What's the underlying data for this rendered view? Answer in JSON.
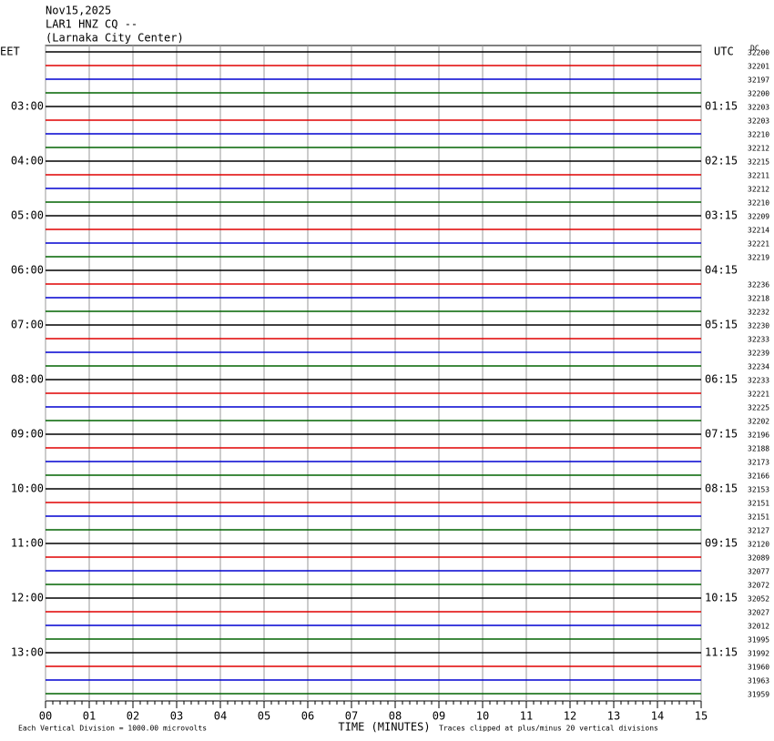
{
  "header": {
    "date": "Nov15,2025",
    "station": "LAR1 HNZ CQ --",
    "location": "(Larnaka City Center)"
  },
  "left_zone": "EET",
  "right_zone": "UTC",
  "corner": "DC",
  "left_labels": [
    "03:00",
    "04:00",
    "05:00",
    "06:00",
    "07:00",
    "08:00",
    "09:00",
    "10:00",
    "11:00",
    "12:00",
    "13:00"
  ],
  "right_labels": [
    "01:15",
    "02:15",
    "03:15",
    "04:15",
    "05:15",
    "06:15",
    "07:15",
    "08:15",
    "09:15",
    "10:15",
    "11:15"
  ],
  "counts": [
    32200,
    32201,
    32197,
    32200,
    32203,
    32203,
    32210,
    32212,
    32215,
    32211,
    32212,
    32210,
    32209,
    32214,
    32221,
    32219,
    null,
    32236,
    32218,
    32232,
    32230,
    32233,
    32239,
    32234,
    32233,
    32221,
    32225,
    32202,
    32196,
    32188,
    32173,
    32166,
    32153,
    32151,
    32151,
    32127,
    32120,
    32089,
    32077,
    32072,
    32052,
    32027,
    32012,
    31995,
    31992,
    31960,
    31963,
    31959
  ],
  "trace_colors": [
    "#000000",
    "#e00000",
    "#0000d0",
    "#006400"
  ],
  "x_ticks": [
    "00",
    "01",
    "02",
    "03",
    "04",
    "05",
    "06",
    "07",
    "08",
    "09",
    "10",
    "11",
    "12",
    "13",
    "14",
    "15"
  ],
  "footer": {
    "scale": "Each Vertical Division = 1000.00 microvolts",
    "axis_title": "TIME (MINUTES)",
    "clip_note": "Traces clipped at plus/minus 20 vertical divisions"
  }
}
